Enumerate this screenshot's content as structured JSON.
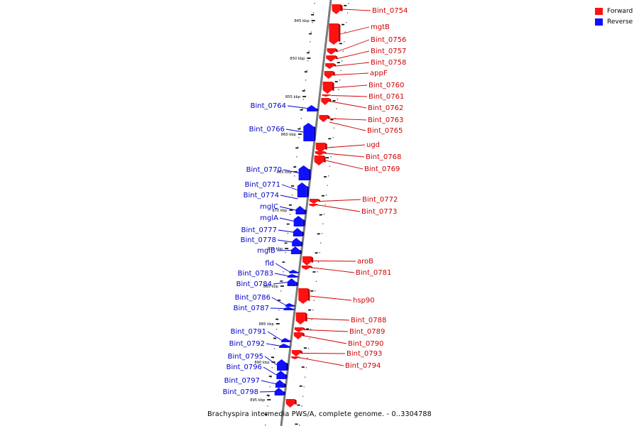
{
  "colors": {
    "forward": "#ff1111",
    "forward_dark": "#b80000",
    "reverse": "#1010ff",
    "reverse_dark": "#0000a8",
    "forward_label": "#d00000",
    "reverse_label": "#0000c8",
    "axis": "#7a7a7a"
  },
  "legend": {
    "forward_label": "Forward",
    "reverse_label": "Reverse"
  },
  "caption": "Brachyspira intermedia PWS/A, complete genome. - 0..3304788",
  "tick_labels": [
    {
      "text": "845 kbp"
    },
    {
      "text": "850 kbp"
    },
    {
      "text": "855 kbp"
    },
    {
      "text": "860 kbp"
    },
    {
      "text": "865 kbp"
    },
    {
      "text": "870 kbp"
    },
    {
      "text": "875 kbp"
    },
    {
      "text": "880 kbp"
    },
    {
      "text": "885 kbp"
    },
    {
      "text": "890 kbp"
    },
    {
      "text": "895 kbp"
    }
  ],
  "forward_genes": [
    {
      "name": "Bint_0754"
    },
    {
      "name": "mgtB"
    },
    {
      "name": "Bint_0756"
    },
    {
      "name": "Bint_0757"
    },
    {
      "name": "Bint_0758"
    },
    {
      "name": "appF"
    },
    {
      "name": "Bint_0760"
    },
    {
      "name": "Bint_0761"
    },
    {
      "name": "Bint_0762"
    },
    {
      "name": "Bint_0763"
    },
    {
      "name": "Bint_0765"
    },
    {
      "name": "ugd"
    },
    {
      "name": "Bint_0768"
    },
    {
      "name": "Bint_0769"
    },
    {
      "name": "Bint_0772"
    },
    {
      "name": "Bint_0773"
    },
    {
      "name": "aroB"
    },
    {
      "name": "Bint_0781"
    },
    {
      "name": "hsp90"
    },
    {
      "name": "Bint_0788"
    },
    {
      "name": "Bint_0789"
    },
    {
      "name": "Bint_0790"
    },
    {
      "name": "Bint_0793"
    },
    {
      "name": "Bint_0794"
    },
    {
      "name": ""
    }
  ],
  "reverse_genes": [
    {
      "name": "Bint_0764"
    },
    {
      "name": "Bint_0766"
    },
    {
      "name": "Bint_0770"
    },
    {
      "name": "Bint_0771"
    },
    {
      "name": "Bint_0774"
    },
    {
      "name": "mglC"
    },
    {
      "name": "mglA"
    },
    {
      "name": "Bint_0777"
    },
    {
      "name": "Bint_0778"
    },
    {
      "name": "mglB"
    },
    {
      "name": "fld"
    },
    {
      "name": "Bint_0783"
    },
    {
      "name": "Bint_0784"
    },
    {
      "name": "Bint_0786"
    },
    {
      "name": "Bint_0787"
    },
    {
      "name": "Bint_0791"
    },
    {
      "name": "Bint_0792"
    },
    {
      "name": "Bint_0795"
    },
    {
      "name": "Bint_0796"
    },
    {
      "name": "Bint_0797"
    },
    {
      "name": "Bint_0798"
    }
  ]
}
